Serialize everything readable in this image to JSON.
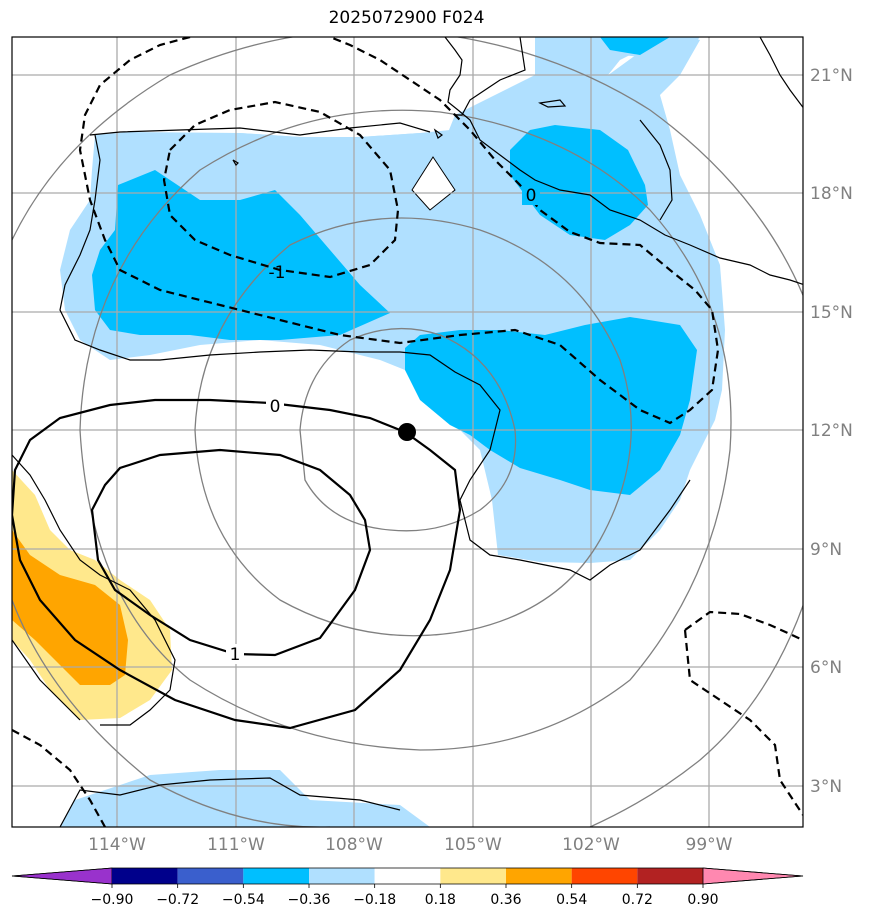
{
  "title": "2025072900 F024",
  "lat_labels": [
    "21°N",
    "18°N",
    "15°N",
    "12°N",
    "9°N",
    "6°N",
    "3°N"
  ],
  "lon_labels": [
    "114°W",
    "111°W",
    "108°W",
    "105°W",
    "102°W",
    "99°W"
  ],
  "colorbar": {
    "colors": [
      "#9932cc",
      "#00008b",
      "#3a5fcd",
      "#00bfff",
      "#b0e0ff",
      "#ffffff",
      "#ffe88c",
      "#ffa500",
      "#ff4500",
      "#b22222",
      "#ff88b0"
    ],
    "labels": [
      "−0.90",
      "−0.72",
      "−0.54",
      "−0.36",
      "−0.18",
      "0.18",
      "0.36",
      "0.54",
      "0.72",
      "0.90"
    ]
  },
  "contour_labels": {
    "solid_zero": "0",
    "solid_one": "1",
    "dashed_zero": "0",
    "dashed_minus_one": "-1"
  }
}
